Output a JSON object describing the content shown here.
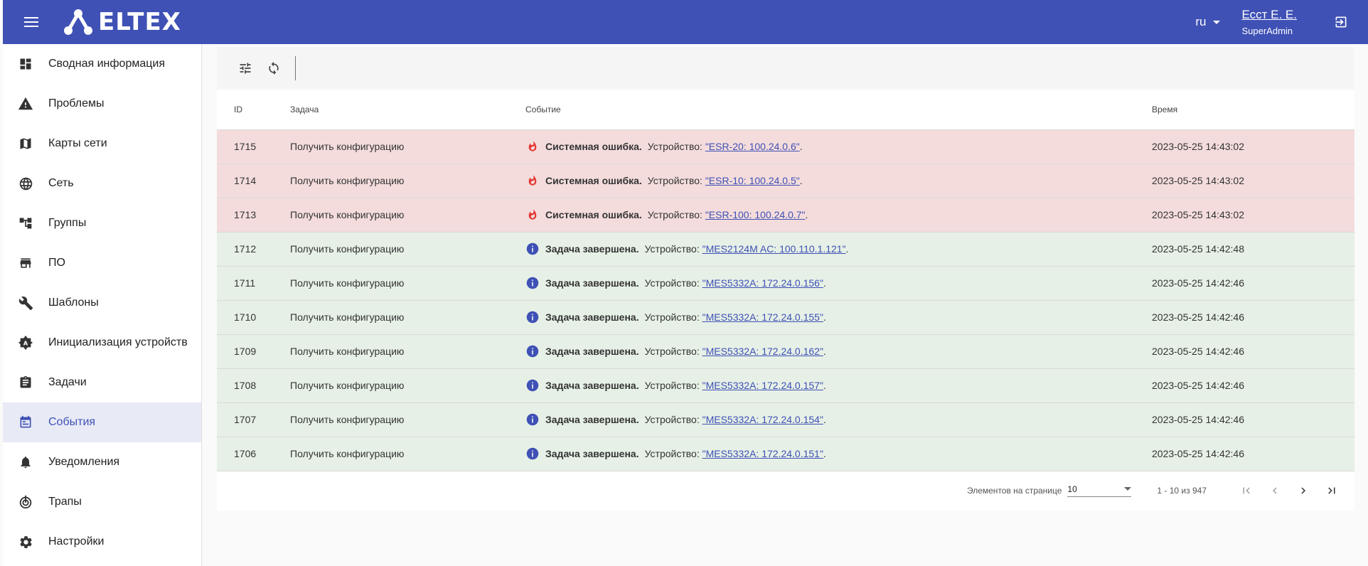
{
  "header": {
    "brand": "ELTEX",
    "lang": "ru",
    "user_name": "Есст Е. Е.",
    "user_role": "SuperAdmin"
  },
  "colors": {
    "header": "#3f51b5",
    "error_row": "#f4dcdc",
    "ok_row": "#e6f0e6",
    "error_icon": "#e53935",
    "info_icon": "#3f51b5"
  },
  "sidebar": {
    "items": [
      {
        "label": "Сводная информация",
        "icon": "dashboard-icon"
      },
      {
        "label": "Проблемы",
        "icon": "warning-icon"
      },
      {
        "label": "Карты сети",
        "icon": "map-icon"
      },
      {
        "label": "Сеть",
        "icon": "globe-icon"
      },
      {
        "label": "Группы",
        "icon": "groups-tree-icon"
      },
      {
        "label": "ПО",
        "icon": "store-icon"
      },
      {
        "label": "Шаблоны",
        "icon": "wrench-icon"
      },
      {
        "label": "Инициализация устройств",
        "icon": "device-init-icon"
      },
      {
        "label": "Задачи",
        "icon": "assignment-icon"
      },
      {
        "label": "События",
        "icon": "event-icon",
        "active": true
      },
      {
        "label": "Уведомления",
        "icon": "bell-icon"
      },
      {
        "label": "Трапы",
        "icon": "trap-icon"
      },
      {
        "label": "Настройки",
        "icon": "gear-icon"
      }
    ]
  },
  "table": {
    "headers": {
      "id": "ID",
      "task": "Задача",
      "event": "Событие",
      "time": "Время"
    },
    "rows": [
      {
        "id": "1715",
        "task": "Получить конфигурацию",
        "type": "error",
        "title": "Системная ошибка.",
        "dev_prefix": "Устройство:",
        "device": "\"ESR-20: 100.24.0.6\"",
        "suffix": ".",
        "time": "2023-05-25 14:43:02"
      },
      {
        "id": "1714",
        "task": "Получить конфигурацию",
        "type": "error",
        "title": "Системная ошибка.",
        "dev_prefix": "Устройство:",
        "device": "\"ESR-10: 100.24.0.5\"",
        "suffix": ".",
        "time": "2023-05-25 14:43:02"
      },
      {
        "id": "1713",
        "task": "Получить конфигурацию",
        "type": "error",
        "title": "Системная ошибка.",
        "dev_prefix": "Устройство:",
        "device": "\"ESR-100: 100.24.0.7\"",
        "suffix": ".",
        "time": "2023-05-25 14:43:02"
      },
      {
        "id": "1712",
        "task": "Получить конфигурацию",
        "type": "info",
        "title": "Задача завершена.",
        "dev_prefix": "Устройство:",
        "device": "\"MES2124M AC: 100.110.1.121\"",
        "suffix": ".",
        "time": "2023-05-25 14:42:48"
      },
      {
        "id": "1711",
        "task": "Получить конфигурацию",
        "type": "info",
        "title": "Задача завершена.",
        "dev_prefix": "Устройство:",
        "device": "\"MES5332A: 172.24.0.156\"",
        "suffix": ".",
        "time": "2023-05-25 14:42:46"
      },
      {
        "id": "1710",
        "task": "Получить конфигурацию",
        "type": "info",
        "title": "Задача завершена.",
        "dev_prefix": "Устройство:",
        "device": "\"MES5332A: 172.24.0.155\"",
        "suffix": ".",
        "time": "2023-05-25 14:42:46"
      },
      {
        "id": "1709",
        "task": "Получить конфигурацию",
        "type": "info",
        "title": "Задача завершена.",
        "dev_prefix": "Устройство:",
        "device": "\"MES5332A: 172.24.0.162\"",
        "suffix": ".",
        "time": "2023-05-25 14:42:46"
      },
      {
        "id": "1708",
        "task": "Получить конфигурацию",
        "type": "info",
        "title": "Задача завершена.",
        "dev_prefix": "Устройство:",
        "device": "\"MES5332A: 172.24.0.157\"",
        "suffix": ".",
        "time": "2023-05-25 14:42:46"
      },
      {
        "id": "1707",
        "task": "Получить конфигурацию",
        "type": "info",
        "title": "Задача завершена.",
        "dev_prefix": "Устройство:",
        "device": "\"MES5332A: 172.24.0.154\"",
        "suffix": ".",
        "time": "2023-05-25 14:42:46"
      },
      {
        "id": "1706",
        "task": "Получить конфигурацию",
        "type": "info",
        "title": "Задача завершена.",
        "dev_prefix": "Устройство:",
        "device": "\"MES5332A: 172.24.0.151\"",
        "suffix": ".",
        "time": "2023-05-25 14:42:46"
      }
    ]
  },
  "paginator": {
    "items_label": "Элементов на странице",
    "page_size": "10",
    "range": "1 - 10 из 947"
  }
}
